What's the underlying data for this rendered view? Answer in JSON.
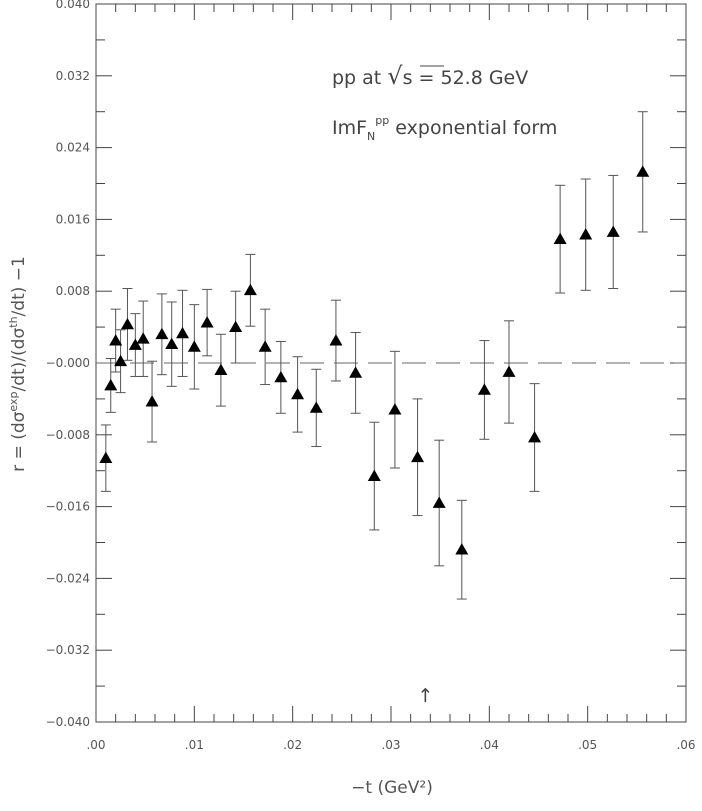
{
  "chart_data": {
    "type": "scatter",
    "title": "",
    "xlabel": "−t  (GeV²)",
    "ylabel": "r = (dσexp/dt)/(dσth/dt) −1",
    "ylabel_parts": {
      "lead": "r  =  (dσ",
      "sup1": "exp",
      "mid": "/dt)/(dσ",
      "sup2": "th",
      "tail": "/dt)  −1"
    },
    "xlim": [
      0.0,
      0.06
    ],
    "ylim": [
      -0.04,
      0.04
    ],
    "x_ticks": [
      0.0,
      0.01,
      0.02,
      0.03,
      0.04,
      0.05,
      0.06
    ],
    "x_tick_labels": [
      ".00",
      ".01",
      ".02",
      ".03",
      ".04",
      ".05",
      ".06"
    ],
    "y_ticks": [
      -0.04,
      -0.032,
      -0.024,
      -0.016,
      -0.008,
      0.0,
      0.008,
      0.016,
      0.024,
      0.032,
      0.04
    ],
    "y_tick_labels": [
      "−0.040",
      "−0.032",
      "−0.024",
      "−0.016",
      "−0.008",
      "−0.000",
      "0.008",
      "0.016",
      "0.024",
      "0.032",
      "0.040"
    ],
    "reference_line_y": 0.0,
    "annotations": {
      "line1": {
        "text_lead": "pp at ",
        "sqrt": "√",
        "text_after": "s   = 52.8 GeV"
      },
      "line2": {
        "lead": "ImF",
        "sub": "N",
        "sup": "pp",
        "tail": " exponential form"
      },
      "arrow": {
        "symbol": "↑",
        "x": 0.0335
      }
    },
    "grid": false,
    "series": [
      {
        "marker": "triangle",
        "points": [
          {
            "x": 0.001,
            "y": -0.0106,
            "yerr": 0.0037
          },
          {
            "x": 0.0015,
            "y": -0.0025,
            "yerr": 0.003
          },
          {
            "x": 0.002,
            "y": 0.0025,
            "yerr": 0.0035
          },
          {
            "x": 0.0025,
            "y": 0.0002,
            "yerr": 0.0035
          },
          {
            "x": 0.0032,
            "y": 0.0043,
            "yerr": 0.004
          },
          {
            "x": 0.004,
            "y": 0.002,
            "yerr": 0.0035
          },
          {
            "x": 0.0048,
            "y": 0.0027,
            "yerr": 0.0042
          },
          {
            "x": 0.0057,
            "y": -0.0043,
            "yerr": 0.0045
          },
          {
            "x": 0.0067,
            "y": 0.0032,
            "yerr": 0.0045
          },
          {
            "x": 0.0077,
            "y": 0.0021,
            "yerr": 0.0047
          },
          {
            "x": 0.0088,
            "y": 0.0033,
            "yerr": 0.0048
          },
          {
            "x": 0.01,
            "y": 0.0018,
            "yerr": 0.0047
          },
          {
            "x": 0.0113,
            "y": 0.0045,
            "yerr": 0.0037
          },
          {
            "x": 0.0127,
            "y": -0.0008,
            "yerr": 0.004
          },
          {
            "x": 0.0142,
            "y": 0.004,
            "yerr": 0.004
          },
          {
            "x": 0.0157,
            "y": 0.0081,
            "yerr": 0.004
          },
          {
            "x": 0.0172,
            "y": 0.0018,
            "yerr": 0.0042
          },
          {
            "x": 0.0188,
            "y": -0.0016,
            "yerr": 0.004
          },
          {
            "x": 0.0205,
            "y": -0.0035,
            "yerr": 0.0042
          },
          {
            "x": 0.0224,
            "y": -0.005,
            "yerr": 0.0043
          },
          {
            "x": 0.0244,
            "y": 0.0025,
            "yerr": 0.0045
          },
          {
            "x": 0.0264,
            "y": -0.0011,
            "yerr": 0.0045
          },
          {
            "x": 0.0283,
            "y": -0.0126,
            "yerr": 0.006
          },
          {
            "x": 0.0304,
            "y": -0.0052,
            "yerr": 0.0065
          },
          {
            "x": 0.0327,
            "y": -0.0105,
            "yerr": 0.0065
          },
          {
            "x": 0.0349,
            "y": -0.0156,
            "yerr": 0.007
          },
          {
            "x": 0.0372,
            "y": -0.0208,
            "yerr": 0.0055
          },
          {
            "x": 0.0395,
            "y": -0.003,
            "yerr": 0.0055
          },
          {
            "x": 0.042,
            "y": -0.001,
            "yerr": 0.0057
          },
          {
            "x": 0.0446,
            "y": -0.0083,
            "yerr": 0.006
          },
          {
            "x": 0.0472,
            "y": 0.0138,
            "yerr": 0.006
          },
          {
            "x": 0.0498,
            "y": 0.0143,
            "yerr": 0.0062
          },
          {
            "x": 0.0526,
            "y": 0.0146,
            "yerr": 0.0063
          },
          {
            "x": 0.0556,
            "y": 0.0213,
            "yerr": 0.0067
          }
        ]
      }
    ]
  }
}
